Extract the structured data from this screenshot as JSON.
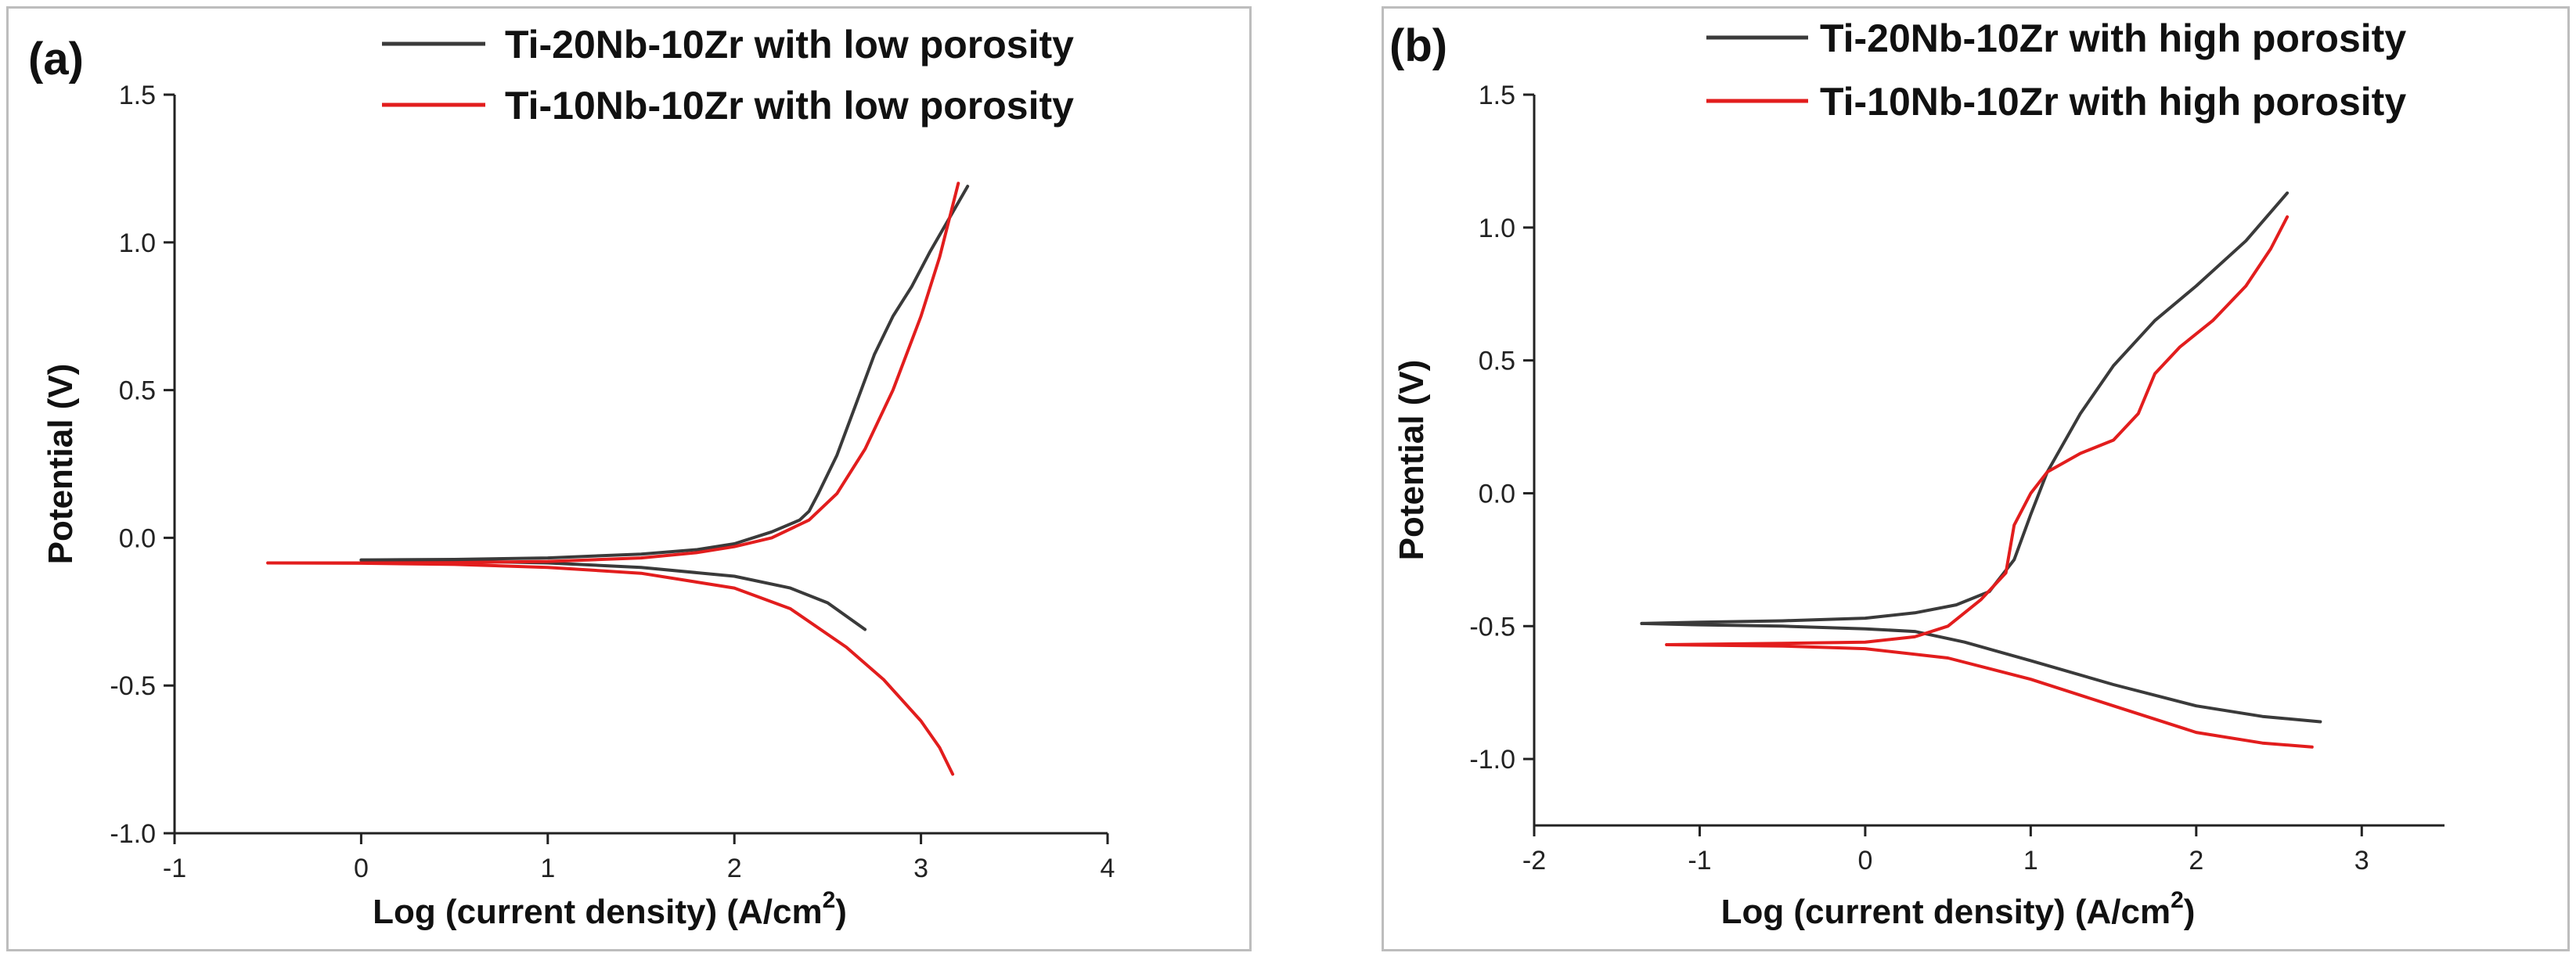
{
  "chart_data": [
    {
      "type": "line",
      "panel_label": "(a)",
      "title": "",
      "xlabel": "Log (current density) (A/cm",
      "xlabel_sup": "2",
      "xlabel_close": ")",
      "ylabel": "Potential (V)",
      "xlim": [
        -1,
        4
      ],
      "ylim": [
        -1.0,
        1.5
      ],
      "x_ticks": [
        "-1",
        "0",
        "1",
        "2",
        "3",
        "4"
      ],
      "y_ticks": [
        "-1.0",
        "-0.5",
        "0.0",
        "0.5",
        "1.0",
        "1.5"
      ],
      "grid": false,
      "legend_position": "top-right",
      "series": [
        {
          "name": "Ti-20Nb-10Zr with low porosity",
          "color": "#3a3a3a",
          "anodic": [
            [
              0.0,
              -0.075
            ],
            [
              0.5,
              -0.073
            ],
            [
              1.0,
              -0.068
            ],
            [
              1.5,
              -0.055
            ],
            [
              1.8,
              -0.04
            ],
            [
              2.0,
              -0.02
            ],
            [
              2.2,
              0.02
            ],
            [
              2.35,
              0.06
            ],
            [
              2.4,
              0.09
            ],
            [
              2.45,
              0.15
            ],
            [
              2.55,
              0.28
            ],
            [
              2.65,
              0.45
            ],
            [
              2.75,
              0.62
            ],
            [
              2.85,
              0.75
            ],
            [
              2.95,
              0.85
            ],
            [
              3.05,
              0.97
            ],
            [
              3.15,
              1.08
            ],
            [
              3.25,
              1.19
            ]
          ],
          "cathodic": [
            [
              0.0,
              -0.075
            ],
            [
              0.5,
              -0.078
            ],
            [
              1.0,
              -0.085
            ],
            [
              1.5,
              -0.1
            ],
            [
              2.0,
              -0.13
            ],
            [
              2.3,
              -0.17
            ],
            [
              2.5,
              -0.22
            ],
            [
              2.7,
              -0.31
            ]
          ]
        },
        {
          "name": "Ti-10Nb-10Zr with low porosity",
          "color": "#e21d1d",
          "anodic": [
            [
              -0.5,
              -0.085
            ],
            [
              0.0,
              -0.085
            ],
            [
              0.5,
              -0.084
            ],
            [
              1.0,
              -0.08
            ],
            [
              1.5,
              -0.068
            ],
            [
              1.8,
              -0.05
            ],
            [
              2.0,
              -0.03
            ],
            [
              2.2,
              0.0
            ],
            [
              2.4,
              0.06
            ],
            [
              2.55,
              0.15
            ],
            [
              2.7,
              0.3
            ],
            [
              2.85,
              0.5
            ],
            [
              3.0,
              0.75
            ],
            [
              3.1,
              0.95
            ],
            [
              3.2,
              1.2
            ]
          ],
          "cathodic": [
            [
              -0.5,
              -0.085
            ],
            [
              0.0,
              -0.086
            ],
            [
              0.5,
              -0.09
            ],
            [
              1.0,
              -0.1
            ],
            [
              1.5,
              -0.12
            ],
            [
              2.0,
              -0.17
            ],
            [
              2.3,
              -0.24
            ],
            [
              2.6,
              -0.37
            ],
            [
              2.8,
              -0.48
            ],
            [
              3.0,
              -0.62
            ],
            [
              3.1,
              -0.71
            ],
            [
              3.17,
              -0.8
            ]
          ]
        }
      ]
    },
    {
      "type": "line",
      "panel_label": "(b)",
      "title": "",
      "xlabel": "Log (current density) (A/cm",
      "xlabel_sup": "2",
      "xlabel_close": ")",
      "ylabel": "Potential (V)",
      "xlim": [
        -2,
        3.5
      ],
      "ylim": [
        -1.25,
        1.5
      ],
      "x_ticks": [
        "-2",
        "-1",
        "0",
        "1",
        "2",
        "3"
      ],
      "y_ticks": [
        "-1.0",
        "-0.5",
        "0.0",
        "0.5",
        "1.0",
        "1.5"
      ],
      "grid": false,
      "legend_position": "top-right",
      "series": [
        {
          "name": "Ti-20Nb-10Zr with high porosity",
          "color": "#3a3a3a",
          "anodic": [
            [
              -1.35,
              -0.49
            ],
            [
              -1.0,
              -0.485
            ],
            [
              -0.5,
              -0.48
            ],
            [
              0.0,
              -0.47
            ],
            [
              0.3,
              -0.45
            ],
            [
              0.55,
              -0.42
            ],
            [
              0.75,
              -0.37
            ],
            [
              0.9,
              -0.25
            ],
            [
              1.0,
              -0.08
            ],
            [
              1.1,
              0.08
            ],
            [
              1.3,
              0.3
            ],
            [
              1.5,
              0.48
            ],
            [
              1.75,
              0.65
            ],
            [
              2.0,
              0.78
            ],
            [
              2.3,
              0.95
            ],
            [
              2.55,
              1.13
            ]
          ],
          "cathodic": [
            [
              -1.35,
              -0.49
            ],
            [
              -1.0,
              -0.495
            ],
            [
              -0.5,
              -0.5
            ],
            [
              0.0,
              -0.51
            ],
            [
              0.3,
              -0.52
            ],
            [
              0.6,
              -0.56
            ],
            [
              1.0,
              -0.63
            ],
            [
              1.5,
              -0.72
            ],
            [
              2.0,
              -0.8
            ],
            [
              2.4,
              -0.84
            ],
            [
              2.75,
              -0.86
            ]
          ]
        },
        {
          "name": "Ti-10Nb-10Zr with high porosity",
          "color": "#e21d1d",
          "anodic": [
            [
              -1.2,
              -0.57
            ],
            [
              -0.5,
              -0.565
            ],
            [
              0.0,
              -0.56
            ],
            [
              0.3,
              -0.54
            ],
            [
              0.5,
              -0.5
            ],
            [
              0.7,
              -0.4
            ],
            [
              0.85,
              -0.3
            ],
            [
              0.9,
              -0.12
            ],
            [
              1.0,
              0.0
            ],
            [
              1.1,
              0.08
            ],
            [
              1.3,
              0.15
            ],
            [
              1.5,
              0.2
            ],
            [
              1.65,
              0.3
            ],
            [
              1.75,
              0.45
            ],
            [
              1.9,
              0.55
            ],
            [
              2.1,
              0.65
            ],
            [
              2.3,
              0.78
            ],
            [
              2.45,
              0.92
            ],
            [
              2.55,
              1.04
            ]
          ],
          "cathodic": [
            [
              -1.2,
              -0.57
            ],
            [
              -0.5,
              -0.575
            ],
            [
              0.0,
              -0.585
            ],
            [
              0.5,
              -0.62
            ],
            [
              1.0,
              -0.7
            ],
            [
              1.5,
              -0.8
            ],
            [
              2.0,
              -0.9
            ],
            [
              2.4,
              -0.94
            ],
            [
              2.7,
              -0.955
            ]
          ]
        }
      ]
    }
  ]
}
